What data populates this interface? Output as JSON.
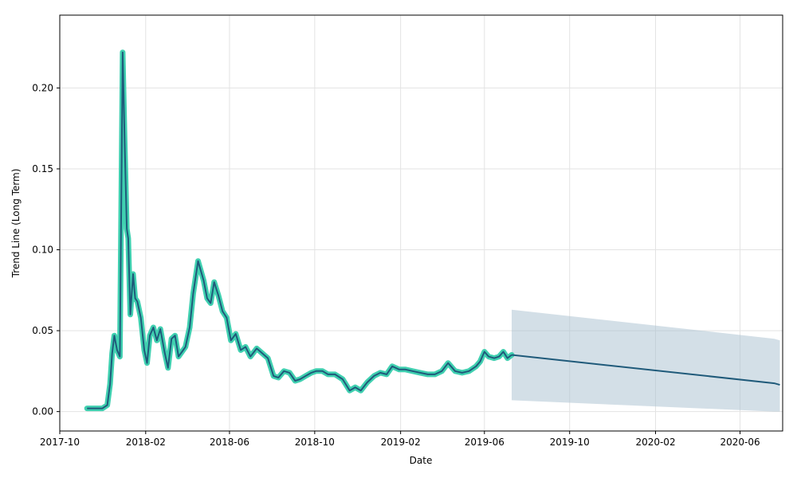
{
  "chart_data": {
    "type": "line",
    "title": "",
    "xlabel": "Date",
    "ylabel": "Trend Line (Long Term)",
    "x_scale": "time",
    "xlim": [
      "2017-10-01",
      "2020-08-01"
    ],
    "ylim": [
      -0.012,
      0.245
    ],
    "grid": true,
    "legend": "none",
    "x_ticks": [
      "2017-10",
      "2018-02",
      "2018-06",
      "2018-10",
      "2019-02",
      "2019-06",
      "2019-10",
      "2020-02",
      "2020-06"
    ],
    "y_ticks": [
      "0.00",
      "0.05",
      "0.10",
      "0.15",
      "0.20"
    ],
    "colors": {
      "history_halo": "#40d0b0",
      "line": "#1f5a7a",
      "band": "#a7c0d0",
      "grid": "#e3e3e3",
      "axes": "#000000"
    },
    "series": [
      {
        "role": "history",
        "x": [
          "2017-11-09",
          "2017-11-20",
          "2017-12-01",
          "2017-12-08",
          "2017-12-12",
          "2017-12-15",
          "2017-12-18",
          "2017-12-22",
          "2017-12-26",
          "2017-12-30",
          "2018-01-02",
          "2018-01-05",
          "2018-01-07",
          "2018-01-10",
          "2018-01-14",
          "2018-01-17",
          "2018-01-20",
          "2018-01-25",
          "2018-01-30",
          "2018-02-03",
          "2018-02-07",
          "2018-02-12",
          "2018-02-17",
          "2018-02-22",
          "2018-02-28",
          "2018-03-05",
          "2018-03-10",
          "2018-03-15",
          "2018-03-20",
          "2018-03-25",
          "2018-03-30",
          "2018-04-05",
          "2018-04-10",
          "2018-04-17",
          "2018-04-25",
          "2018-04-30",
          "2018-05-05",
          "2018-05-10",
          "2018-05-16",
          "2018-05-22",
          "2018-05-28",
          "2018-06-03",
          "2018-06-10",
          "2018-06-17",
          "2018-06-24",
          "2018-07-01",
          "2018-07-10",
          "2018-07-18",
          "2018-07-26",
          "2018-08-03",
          "2018-08-10",
          "2018-08-18",
          "2018-08-26",
          "2018-09-03",
          "2018-09-10",
          "2018-09-18",
          "2018-09-26",
          "2018-10-03",
          "2018-10-12",
          "2018-10-20",
          "2018-10-30",
          "2018-11-10",
          "2018-11-20",
          "2018-11-28",
          "2018-12-06",
          "2018-12-15",
          "2018-12-25",
          "2019-01-03",
          "2019-01-12",
          "2019-01-20",
          "2019-01-30",
          "2019-02-08",
          "2019-02-18",
          "2019-03-01",
          "2019-03-12",
          "2019-03-22",
          "2019-04-01",
          "2019-04-10",
          "2019-04-20",
          "2019-04-30",
          "2019-05-10",
          "2019-05-20",
          "2019-05-26",
          "2019-06-01",
          "2019-06-07",
          "2019-06-15",
          "2019-06-22",
          "2019-06-28",
          "2019-07-04",
          "2019-07-10"
        ],
        "values": [
          0.002,
          0.002,
          0.002,
          0.004,
          0.017,
          0.036,
          0.047,
          0.038,
          0.034,
          0.222,
          0.165,
          0.113,
          0.107,
          0.06,
          0.085,
          0.07,
          0.068,
          0.058,
          0.038,
          0.03,
          0.047,
          0.052,
          0.044,
          0.051,
          0.037,
          0.027,
          0.045,
          0.047,
          0.034,
          0.037,
          0.04,
          0.052,
          0.073,
          0.093,
          0.081,
          0.07,
          0.067,
          0.08,
          0.072,
          0.062,
          0.058,
          0.044,
          0.048,
          0.038,
          0.04,
          0.034,
          0.039,
          0.036,
          0.033,
          0.022,
          0.021,
          0.025,
          0.024,
          0.019,
          0.02,
          0.022,
          0.024,
          0.025,
          0.025,
          0.023,
          0.023,
          0.02,
          0.013,
          0.015,
          0.013,
          0.018,
          0.022,
          0.024,
          0.023,
          0.028,
          0.026,
          0.026,
          0.025,
          0.024,
          0.023,
          0.023,
          0.025,
          0.03,
          0.025,
          0.024,
          0.025,
          0.028,
          0.031,
          0.037,
          0.034,
          0.033,
          0.034,
          0.037,
          0.033,
          0.035
        ]
      },
      {
        "role": "forecast",
        "x": [
          "2019-07-10",
          "2020-07-20",
          "2020-07-28"
        ],
        "values": [
          0.035,
          0.0175,
          0.0165
        ],
        "lower": [
          0.007,
          0.0,
          0.0
        ],
        "upper": [
          0.063,
          0.045,
          0.044
        ]
      }
    ]
  }
}
